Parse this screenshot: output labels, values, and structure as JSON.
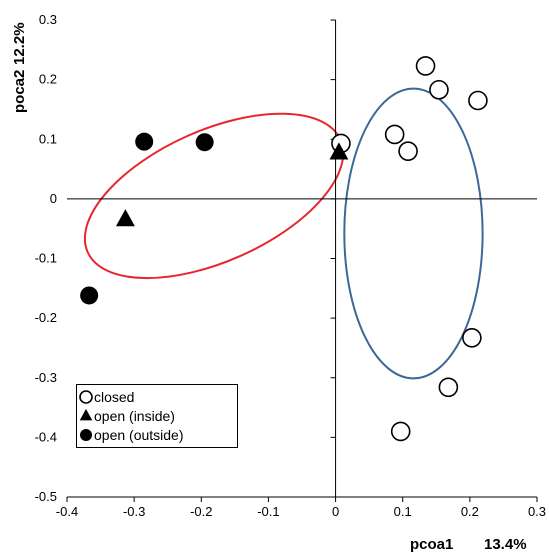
{
  "chart_data": {
    "type": "scatter",
    "xlabel": "pcoa1",
    "xlabel_percent": "13.4%",
    "ylabel": "poca2",
    "ylabel_percent": "12.2%",
    "xlim": [
      -0.4,
      0.3
    ],
    "ylim": [
      -0.5,
      0.3
    ],
    "x_ticks": [
      "-0.4",
      "-0.3",
      "-0.2",
      "-0.1",
      "0",
      "0.1",
      "0.2",
      "0.3"
    ],
    "y_ticks": [
      "0.3",
      "0.2",
      "0.1",
      "0",
      "-0.1",
      "-0.2",
      "-0.3",
      "-0.4",
      "-0.5"
    ],
    "grid": false,
    "legend_position": "bottom-left",
    "series": [
      {
        "name": "closed",
        "marker": "open-circle",
        "points": [
          {
            "x": 0.008,
            "y": 0.093
          },
          {
            "x": 0.088,
            "y": 0.108
          },
          {
            "x": 0.108,
            "y": 0.08
          },
          {
            "x": 0.134,
            "y": 0.223
          },
          {
            "x": 0.154,
            "y": 0.183
          },
          {
            "x": 0.212,
            "y": 0.165
          },
          {
            "x": 0.203,
            "y": -0.233
          },
          {
            "x": 0.168,
            "y": -0.316
          },
          {
            "x": 0.097,
            "y": -0.39
          }
        ]
      },
      {
        "name": "open (inside)",
        "marker": "filled-triangle",
        "points": [
          {
            "x": -0.313,
            "y": -0.035
          },
          {
            "x": 0.005,
            "y": 0.077
          }
        ]
      },
      {
        "name": "open (outside)",
        "marker": "filled-circle",
        "points": [
          {
            "x": -0.285,
            "y": 0.096
          },
          {
            "x": -0.195,
            "y": 0.095
          },
          {
            "x": -0.367,
            "y": -0.162
          }
        ]
      }
    ],
    "ellipses": [
      {
        "group": "open",
        "color": "#e8262b",
        "cx": -0.181,
        "cy": 0.005,
        "rx": 0.206,
        "ry": 0.11,
        "rotation_deg": -24
      },
      {
        "group": "closed",
        "color": "#3c6796",
        "cx": 0.116,
        "cy": -0.058,
        "rx": 0.103,
        "ry": 0.243,
        "rotation_deg": 0
      }
    ]
  }
}
